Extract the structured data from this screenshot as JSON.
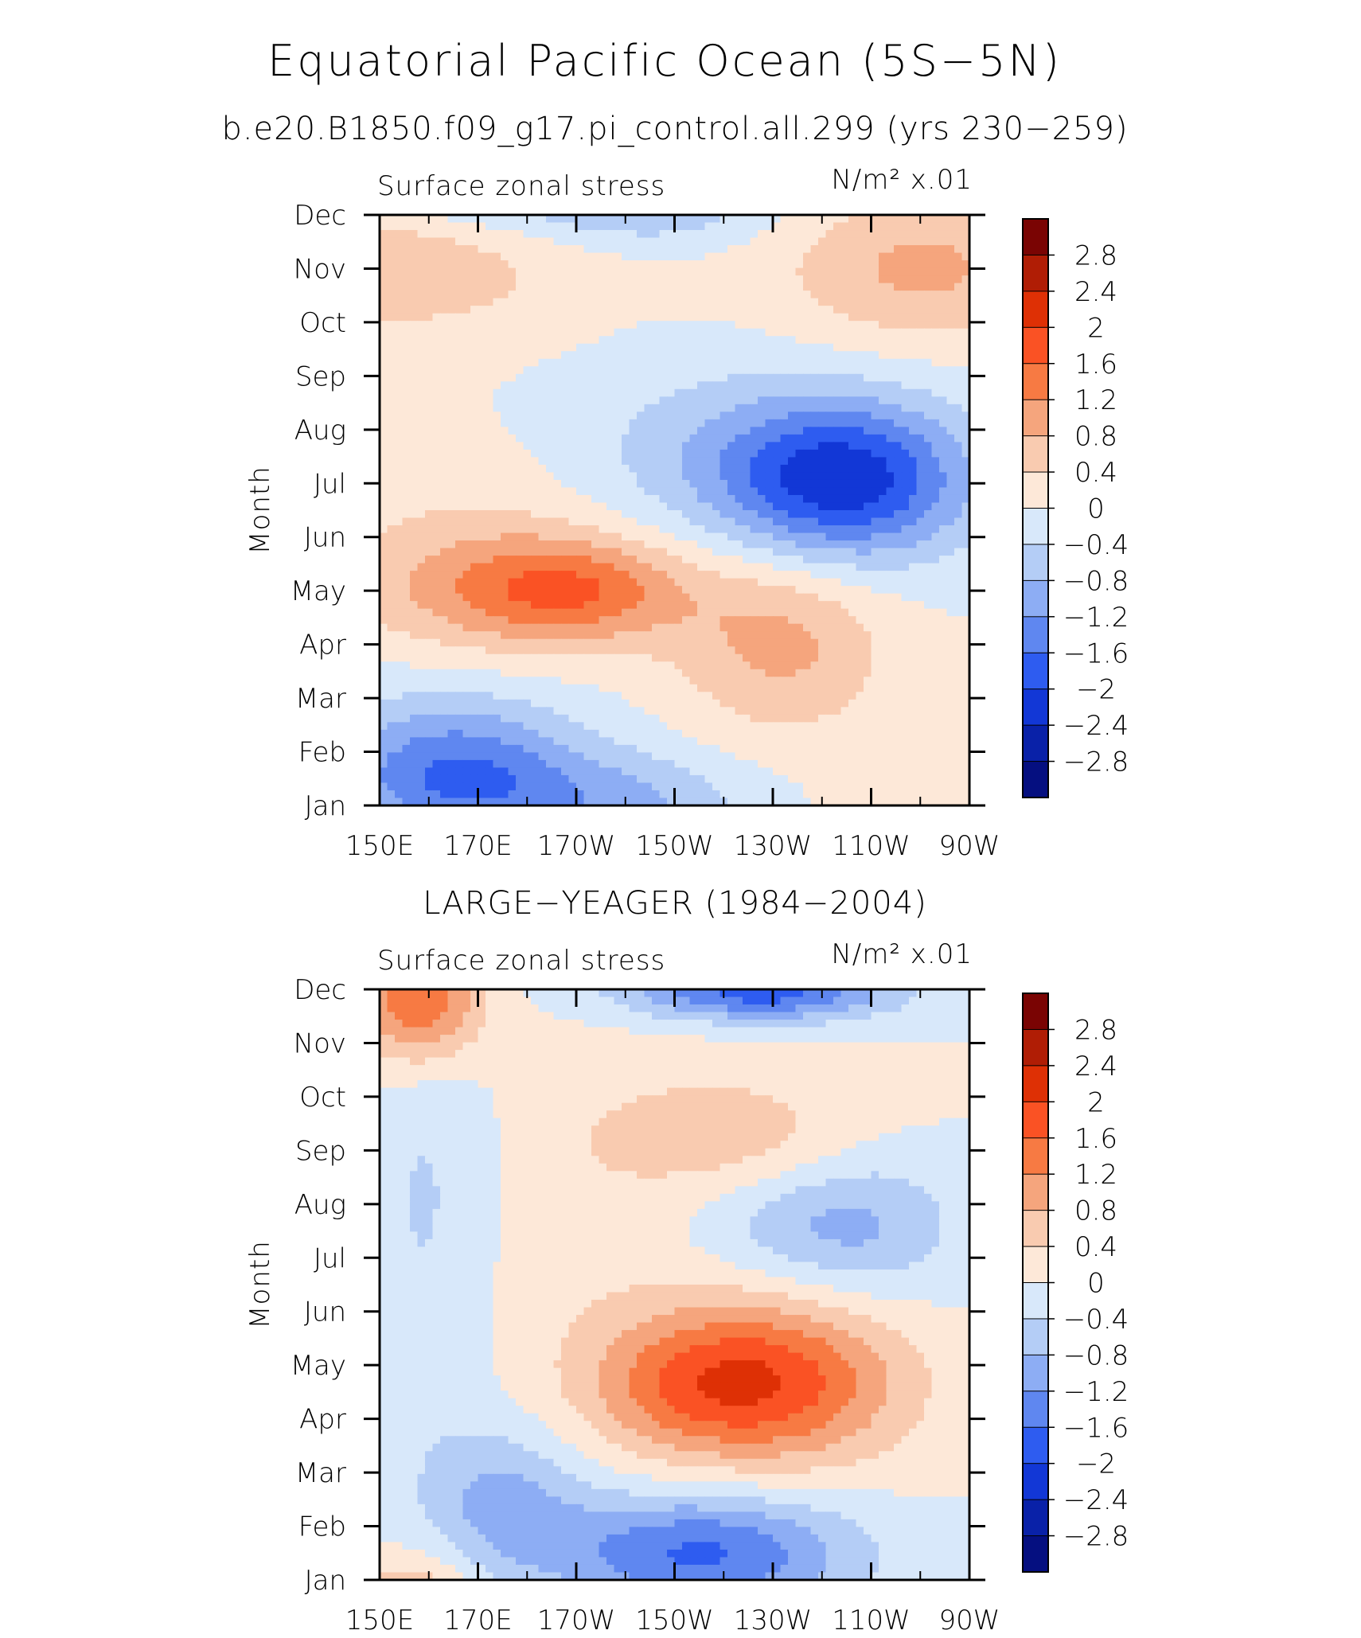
{
  "figure": {
    "title": "Equatorial Pacific Ocean (5S−5N)",
    "subtitle": "b.e20.B1850.f09_g17.pi_control.all.299 (yrs 230−259)"
  },
  "chart_data": [
    {
      "type": "heatmap",
      "panel": "model",
      "title": "",
      "left_label": "Surface zonal stress",
      "units_label": "N/m² x.01",
      "xlabel": "",
      "ylabel": "Month",
      "x_ticks": [
        "150E",
        "170E",
        "170W",
        "150W",
        "130W",
        "110W",
        "90W"
      ],
      "x_range_deg_east": [
        150,
        270
      ],
      "y_ticks": [
        "Jan",
        "Feb",
        "Mar",
        "Apr",
        "May",
        "Jun",
        "Jul",
        "Aug",
        "Sep",
        "Oct",
        "Nov",
        "Dec"
      ],
      "contour_levels": [
        -2.8,
        -2.4,
        -2,
        -1.6,
        -1.2,
        -0.8,
        -0.4,
        0,
        0.4,
        0.8,
        1.2,
        1.6,
        2,
        2.4,
        2.8
      ],
      "field_features": [
        {
          "lon": 180,
          "month": 4.0,
          "amp": 1.2,
          "slon": 22,
          "smon": 0.8
        },
        {
          "lon": 192,
          "month": 4.0,
          "amp": 0.6,
          "slon": 14,
          "smon": 0.6
        },
        {
          "lon": 232,
          "month": 3.0,
          "amp": 0.9,
          "slon": 15,
          "smon": 1.2
        },
        {
          "lon": 245,
          "month": 6.0,
          "amp": -1.9,
          "slon": 17,
          "smon": 1.0
        },
        {
          "lon": 225,
          "month": 6.5,
          "amp": -0.7,
          "slon": 28,
          "smon": 1.2
        },
        {
          "lon": 165,
          "month": 0.5,
          "amp": -1.7,
          "slon": 18,
          "smon": 1.0
        },
        {
          "lon": 200,
          "month": 0.0,
          "amp": -0.8,
          "slon": 18,
          "smon": 0.7
        },
        {
          "lon": 152,
          "month": 10.2,
          "amp": 0.8,
          "slon": 26,
          "smon": 1.0
        },
        {
          "lon": 260,
          "month": 10.0,
          "amp": 0.9,
          "slon": 20,
          "smon": 1.0
        },
        {
          "lon": 205,
          "month": 11.0,
          "amp": -0.5,
          "slon": 18,
          "smon": 0.45
        },
        {
          "lon": 170,
          "month": 5.5,
          "amp": 0.3,
          "slon": 25,
          "smon": 1.2
        }
      ]
    },
    {
      "type": "heatmap",
      "panel": "observations",
      "title": "LARGE−YEAGER (1984−2004)",
      "left_label": "Surface zonal stress",
      "units_label": "N/m² x.01",
      "xlabel": "",
      "ylabel": "Month",
      "x_ticks": [
        "150E",
        "170E",
        "170W",
        "150W",
        "130W",
        "110W",
        "90W"
      ],
      "x_range_deg_east": [
        150,
        270
      ],
      "y_ticks": [
        "Jan",
        "Feb",
        "Mar",
        "Apr",
        "May",
        "Jun",
        "Jul",
        "Aug",
        "Sep",
        "Oct",
        "Nov",
        "Dec"
      ],
      "contour_levels": [
        -2.8,
        -2.4,
        -2,
        -1.6,
        -1.2,
        -0.8,
        -0.4,
        0,
        0.4,
        0.8,
        1.2,
        1.6,
        2,
        2.4,
        2.8
      ],
      "field_features": [
        {
          "lon": 232,
          "month": 3.7,
          "amp": 1.6,
          "slon": 18,
          "smon": 1.1
        },
        {
          "lon": 212,
          "month": 3.6,
          "amp": 0.9,
          "slon": 15,
          "smon": 0.9
        },
        {
          "lon": 158,
          "month": 10.9,
          "amp": 1.8,
          "slon": 9,
          "smon": 0.9
        },
        {
          "lon": 222,
          "month": 8.3,
          "amp": 0.6,
          "slon": 20,
          "smon": 0.8
        },
        {
          "lon": 228,
          "month": 10.9,
          "amp": -1.6,
          "slon": 18,
          "smon": 0.35
        },
        {
          "lon": 215,
          "month": 0.5,
          "amp": -1.7,
          "slon": 22,
          "smon": 0.8
        },
        {
          "lon": 175,
          "month": 1.5,
          "amp": -0.9,
          "slon": 12,
          "smon": 1.0
        },
        {
          "lon": 160,
          "month": 7.0,
          "amp": -0.5,
          "slon": 10,
          "smon": 3.0
        },
        {
          "lon": 248,
          "month": 6.6,
          "amp": -0.8,
          "slon": 14,
          "smon": 1.0
        },
        {
          "lon": 228,
          "month": 6.6,
          "amp": -0.4,
          "slon": 14,
          "smon": 0.7
        },
        {
          "lon": 192,
          "month": 6.0,
          "amp": 0.25,
          "slon": 22,
          "smon": 3.0
        }
      ]
    }
  ],
  "colorbar": {
    "labels": [
      "2.8",
      "2.4",
      "2",
      "1.6",
      "1.2",
      "0.8",
      "0.4",
      "0",
      "−0.4",
      "−0.8",
      "−1.2",
      "−1.6",
      "−2",
      "−2.4",
      "−2.8"
    ],
    "colors_top_to_bottom": [
      "#7a0403",
      "#b01d05",
      "#de3005",
      "#fa5224",
      "#f77a43",
      "#f5a57d",
      "#f9cbb0",
      "#fde8d8",
      "#d8e8fa",
      "#b4cdf6",
      "#8dadf4",
      "#5f87f0",
      "#2e5cf0",
      "#1237d6",
      "#0921a8",
      "#050f80"
    ]
  }
}
